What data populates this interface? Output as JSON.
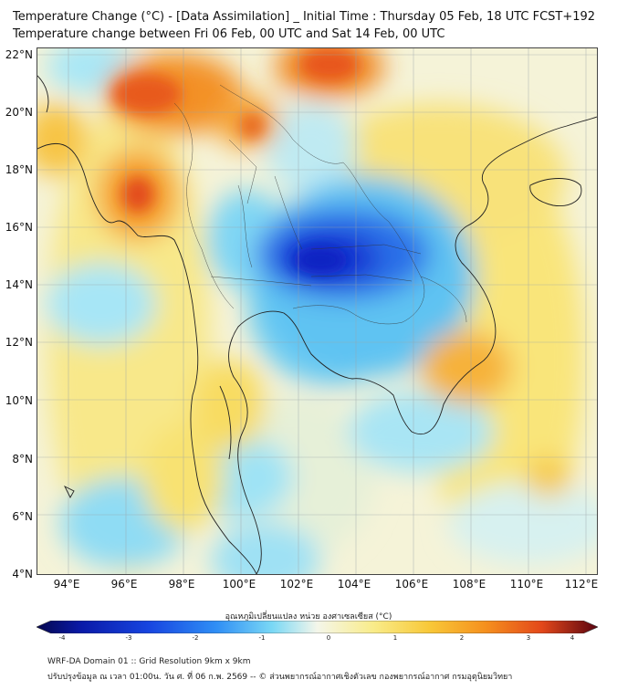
{
  "header": {
    "title_line1": "Temperature Change (°C) - [Data Assimilation] _ Initial Time : Thursday 05 Feb, 18 UTC FCST+192",
    "title_line2": "Temperature change between Fri 06 Feb, 00 UTC and Sat 14 Feb, 00 UTC"
  },
  "map": {
    "lat_labels": [
      "22°N",
      "20°N",
      "18°N",
      "16°N",
      "14°N",
      "12°N",
      "10°N",
      "8°N",
      "6°N",
      "4°N"
    ],
    "lon_labels": [
      "94°E",
      "96°E",
      "98°E",
      "100°E",
      "102°E",
      "104°E",
      "106°E",
      "108°E",
      "110°E",
      "112°E"
    ],
    "lat_range": [
      4,
      22.3
    ],
    "lon_range": [
      93,
      112.5
    ]
  },
  "colorbar": {
    "title": "อุณหภูมิเปลี่ยนแปลง หน่วย องศาเซลเซียส (°C)",
    "ticks": [
      "-4",
      "-3",
      "-2",
      "-1",
      "0",
      "1",
      "2",
      "3",
      "4"
    ],
    "range": [
      -4,
      4
    ]
  },
  "footer": {
    "line1": "WRF-DA Domain 01 :: Grid Resolution 9km x 9km",
    "line2": "ปรับปรุงข้อมูล ณ เวลา 01:00น. วัน ศ. ที่ 06 ก.พ. 2569 -- © ส่วนพยากรณ์อากาศเชิงตัวเลข กองพยากรณ์อากาศ กรมอุตุนิยมวิทยา"
  },
  "colors": {
    "cold_strong": "#0a25c8",
    "cold": "#2f8ef5",
    "cool": "#7ad8f5",
    "neutral": "#f4f6ea",
    "warm": "#f8e36a",
    "hot": "#f5901e",
    "hot_strong": "#e3481a"
  }
}
